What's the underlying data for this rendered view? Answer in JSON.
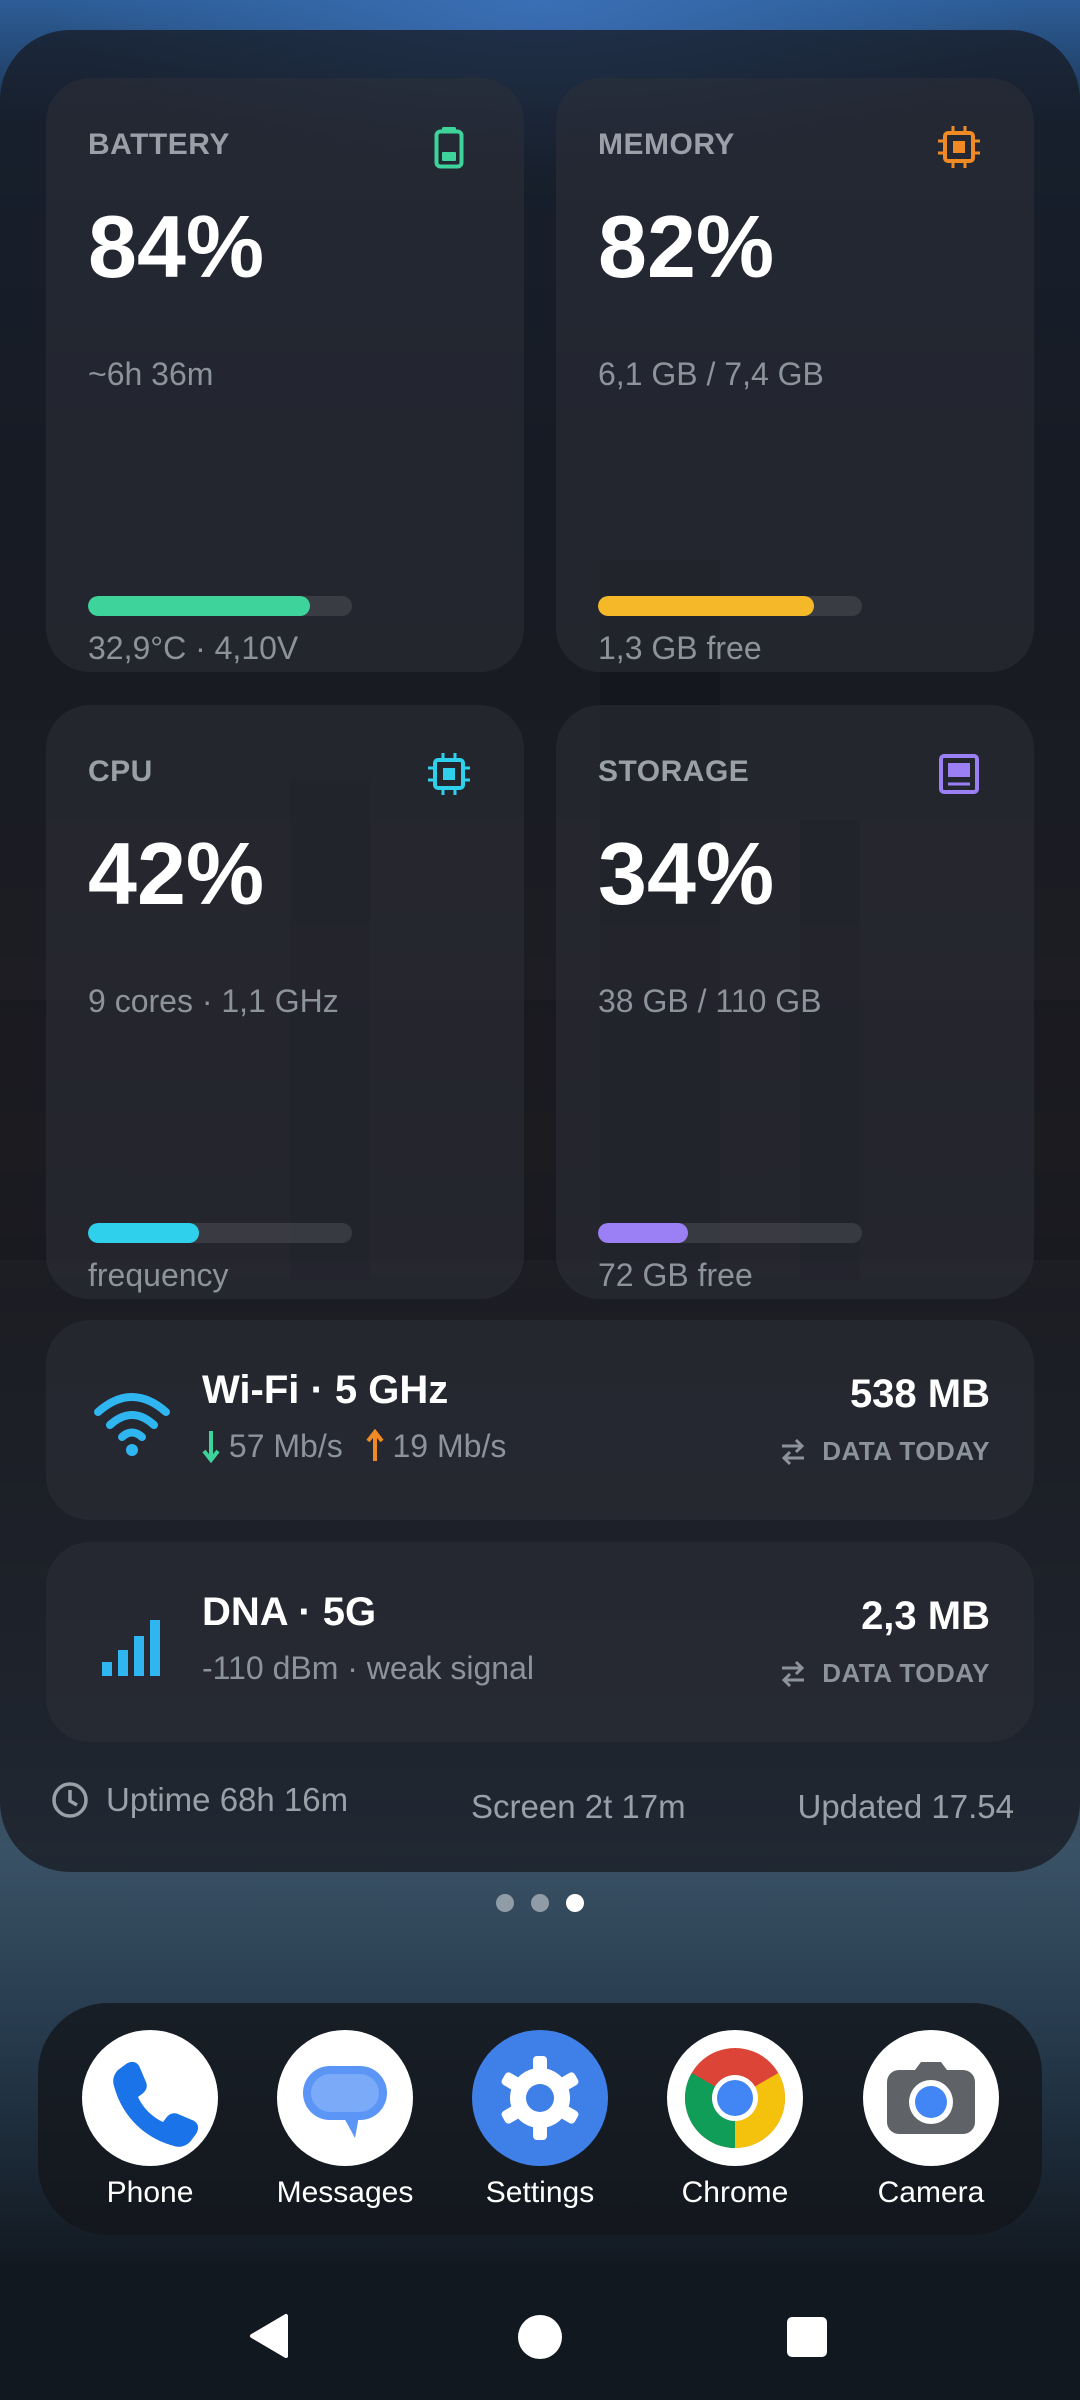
{
  "colors": {
    "battery": "#3ed39a",
    "memory": "#f5b829",
    "memory_icon": "#f08a24",
    "cpu": "#2fd0ec",
    "storage": "#9b7ff5",
    "download": "#3ed39a",
    "upload": "#f08a24",
    "wifi": "#2fb6f0"
  },
  "cards": {
    "battery": {
      "label": "BATTERY",
      "value": "84%",
      "sub": "~6h 36m",
      "foot": "32,9°C · 4,10V",
      "level": 0.84,
      "icon": "battery-icon"
    },
    "memory": {
      "label": "MEMORY",
      "value": "82%",
      "sub": "6,1 GB / 7,4 GB",
      "foot": "1,3 GB free",
      "level": 0.82,
      "icon": "chip-icon"
    },
    "cpu": {
      "label": "CPU",
      "value": "42%",
      "sub": "9 cores · 1,1 GHz",
      "foot": "frequency",
      "level": 0.42,
      "icon": "cpu-icon"
    },
    "storage": {
      "label": "STORAGE",
      "value": "34%",
      "sub": "38 GB / 110 GB",
      "foot": "72 GB free",
      "level": 0.34,
      "icon": "storage-icon"
    }
  },
  "wifi": {
    "title": "Wi-Fi · 5 GHz",
    "down": "57 Mb/s",
    "up": "19 Mb/s",
    "amount": "538 MB",
    "amount_label": "DATA TODAY",
    "icon": "wifi-icon"
  },
  "cellular": {
    "title": "DNA · 5G",
    "detail": "-110 dBm · weak signal",
    "amount": "2,3 MB",
    "amount_label": "DATA TODAY",
    "icon": "signal-bars-icon"
  },
  "footer": {
    "uptime": "Uptime 68h 16m",
    "screen": "Screen 2t 17m",
    "updated": "Updated 17.54"
  },
  "pager": {
    "count": 3,
    "active": 3
  },
  "dock": [
    {
      "label": "Phone",
      "icon": "phone-icon"
    },
    {
      "label": "Messages",
      "icon": "messages-icon"
    },
    {
      "label": "Settings",
      "icon": "settings-gear-icon"
    },
    {
      "label": "Chrome",
      "icon": "chrome-icon"
    },
    {
      "label": "Camera",
      "icon": "camera-icon"
    }
  ],
  "navbar": {
    "back": "back-icon",
    "home": "home-icon",
    "recents": "recents-icon"
  }
}
